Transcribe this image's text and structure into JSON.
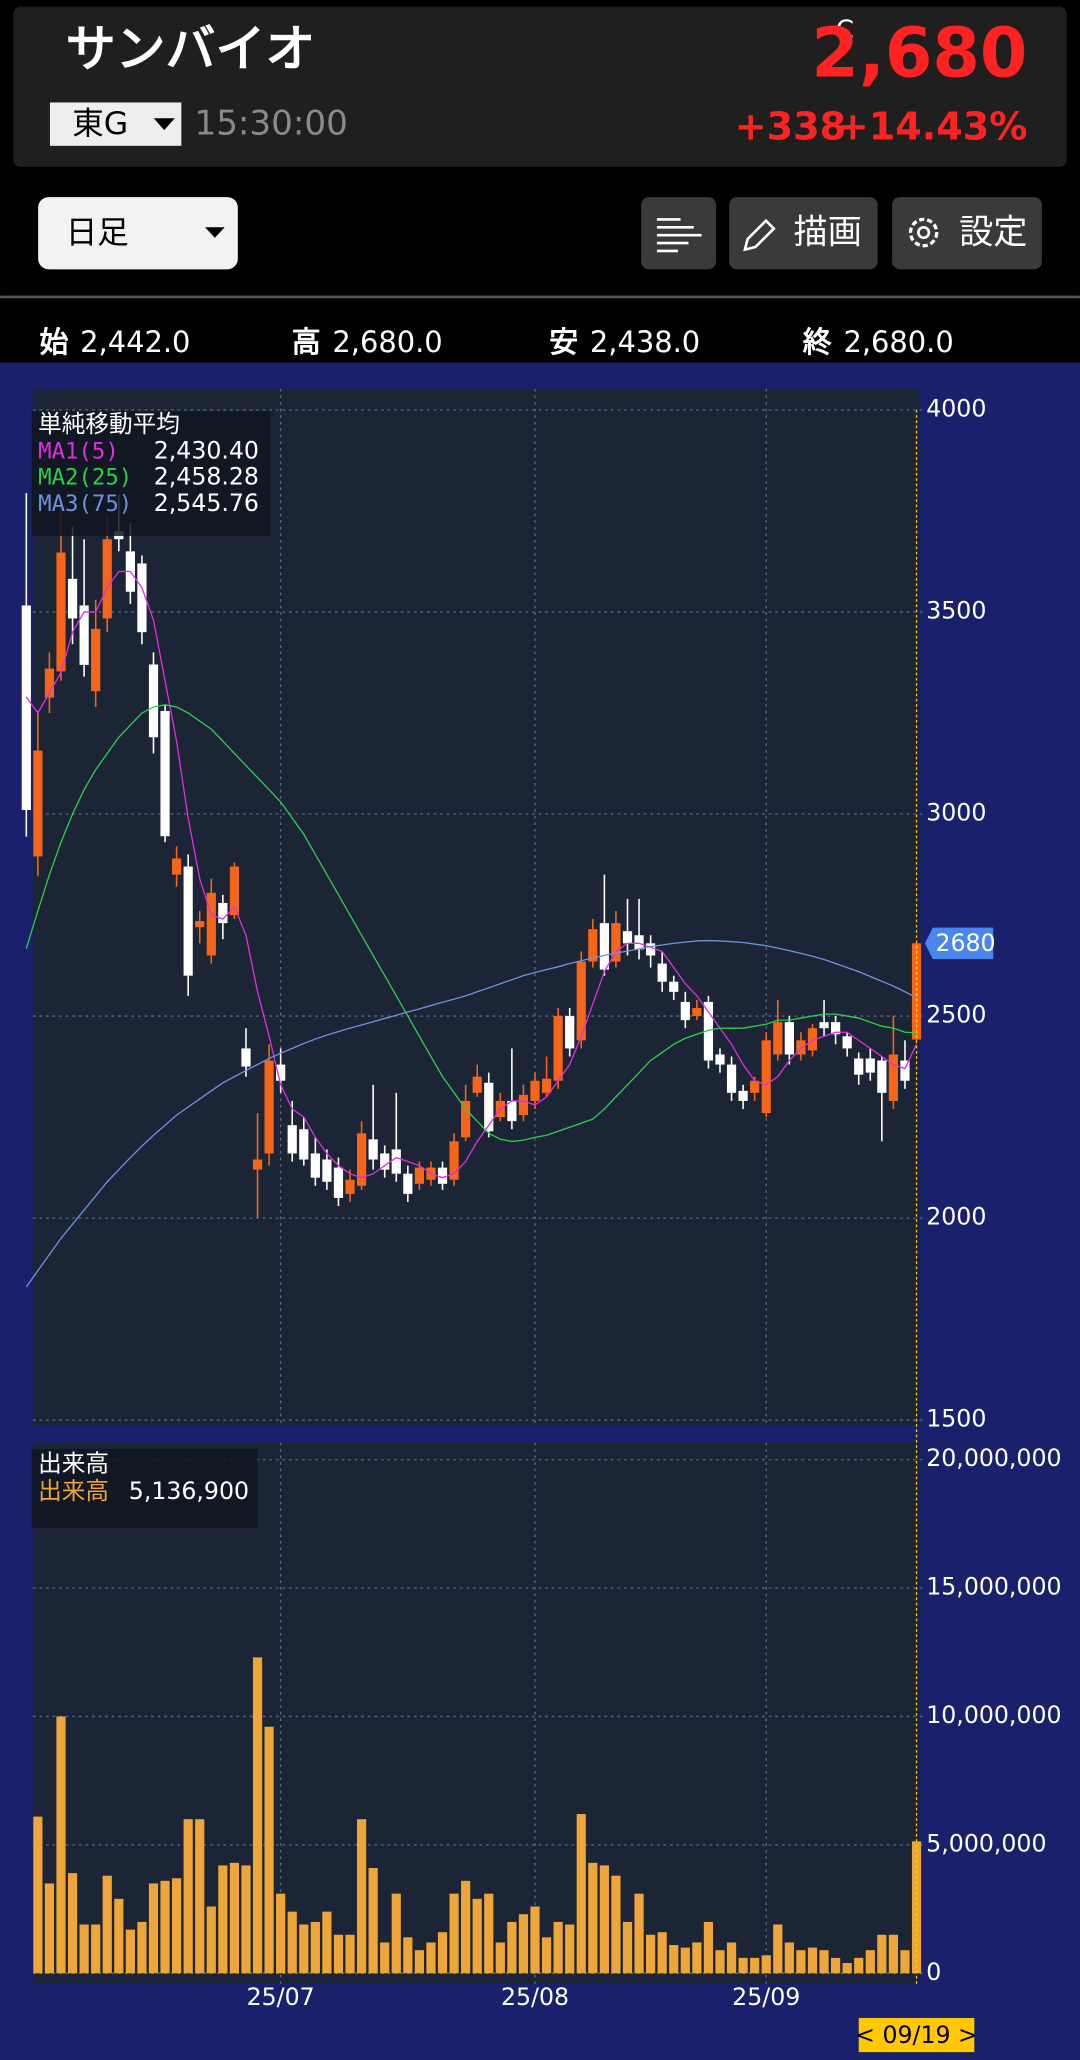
{
  "header": {
    "name": "サンバイオ",
    "market": "東G",
    "time": "15:30:00",
    "price_flag": "C",
    "price": "2,680",
    "change": "+338",
    "change_pct": "+14.43%"
  },
  "toolbar": {
    "period": "日足",
    "draw": "描画",
    "settings": "設定"
  },
  "ohlc": [
    {
      "label": "始",
      "value": "2,442.0"
    },
    {
      "label": "高",
      "value": "2,680.0"
    },
    {
      "label": "安",
      "value": "2,438.0"
    },
    {
      "label": "終",
      "value": "2,680.0"
    }
  ],
  "chart_data": [
    {
      "type": "candlestick",
      "overlay_title": "単純移動平均",
      "up_color": "#f5661a",
      "down_color": "#ffffff",
      "open": [
        3516,
        2895,
        3288,
        3353,
        3582,
        3516,
        3304,
        3484,
        3700,
        3650,
        3620,
        3370,
        3255,
        2850,
        2870,
        2720,
        2650,
        2780,
        2750,
        2420,
        2120,
        2160,
        2380,
        2230,
        2220,
        2160,
        2145,
        2125,
        2060,
        2080,
        2195,
        2160,
        2170,
        2110,
        2085,
        2095,
        2125,
        2095,
        2200,
        2310,
        2335,
        2250,
        2290,
        2255,
        2290,
        2310,
        2340,
        2500,
        2440,
        2635,
        2730,
        2635,
        2710,
        2700,
        2680,
        2630,
        2585,
        2535,
        2500,
        2535,
        2405,
        2380,
        2315,
        2310,
        2260,
        2405,
        2485,
        2405,
        2415,
        2485,
        2485,
        2450,
        2395,
        2395,
        2390,
        2290,
        2390,
        2442
      ],
      "high": [
        3794,
        3255,
        3400,
        3760,
        3712,
        3680,
        3530,
        3740,
        3790,
        3720,
        3640,
        3400,
        3270,
        2920,
        2900,
        2760,
        2840,
        2800,
        2880,
        2470,
        2260,
        2430,
        2420,
        2290,
        2250,
        2200,
        2170,
        2150,
        2120,
        2240,
        2330,
        2180,
        2310,
        2130,
        2140,
        2140,
        2140,
        2210,
        2330,
        2380,
        2360,
        2310,
        2420,
        2330,
        2360,
        2400,
        2520,
        2520,
        2660,
        2740,
        2850,
        2760,
        2790,
        2790,
        2700,
        2660,
        2600,
        2560,
        2540,
        2550,
        2420,
        2400,
        2330,
        2350,
        2460,
        2540,
        2500,
        2460,
        2480,
        2540,
        2500,
        2460,
        2410,
        2420,
        2400,
        2500,
        2440,
        2680
      ],
      "low": [
        2944,
        2846,
        3250,
        3330,
        3420,
        3340,
        3265,
        3450,
        3650,
        3520,
        3420,
        3150,
        2930,
        2820,
        2550,
        2680,
        2630,
        2690,
        2740,
        2350,
        2000,
        2130,
        2310,
        2140,
        2130,
        2080,
        2070,
        2030,
        2040,
        2070,
        2120,
        2100,
        2090,
        2040,
        2070,
        2080,
        2070,
        2080,
        2190,
        2300,
        2200,
        2240,
        2220,
        2240,
        2270,
        2300,
        2320,
        2400,
        2420,
        2620,
        2600,
        2620,
        2650,
        2640,
        2620,
        2560,
        2540,
        2470,
        2490,
        2370,
        2360,
        2290,
        2270,
        2290,
        2250,
        2390,
        2380,
        2390,
        2400,
        2450,
        2430,
        2400,
        2330,
        2340,
        2190,
        2270,
        2320,
        2438
      ],
      "close": [
        3010,
        3157,
        3360,
        3647,
        3484,
        3369,
        3458,
        3680,
        3680,
        3550,
        3450,
        3190,
        2945,
        2890,
        2600,
        2735,
        2805,
        2730,
        2870,
        2375,
        2145,
        2390,
        2340,
        2160,
        2145,
        2100,
        2090,
        2050,
        2095,
        2210,
        2145,
        2120,
        2110,
        2060,
        2125,
        2125,
        2085,
        2190,
        2290,
        2350,
        2215,
        2290,
        2240,
        2305,
        2340,
        2345,
        2500,
        2420,
        2635,
        2715,
        2615,
        2730,
        2680,
        2665,
        2650,
        2585,
        2560,
        2490,
        2520,
        2390,
        2380,
        2310,
        2290,
        2340,
        2440,
        2485,
        2405,
        2440,
        2470,
        2470,
        2455,
        2420,
        2355,
        2360,
        2310,
        2405,
        2340,
        2680
      ],
      "series": [
        {
          "name": "MA1(5)",
          "color": "#e02ee0",
          "last_label": "2,430.40",
          "values": [
            3290,
            3250,
            3300,
            3350,
            3450,
            3500,
            3500,
            3560,
            3600,
            3600,
            3560,
            3480,
            3330,
            3180,
            2990,
            2840,
            2750,
            2740,
            2770,
            2700,
            2560,
            2450,
            2330,
            2270,
            2250,
            2200,
            2160,
            2130,
            2110,
            2100,
            2110,
            2130,
            2150,
            2140,
            2130,
            2110,
            2100,
            2110,
            2140,
            2190,
            2230,
            2270,
            2290,
            2290,
            2280,
            2300,
            2340,
            2380,
            2450,
            2530,
            2610,
            2660,
            2680,
            2680,
            2670,
            2660,
            2620,
            2580,
            2550,
            2510,
            2470,
            2430,
            2380,
            2340,
            2330,
            2350,
            2390,
            2420,
            2440,
            2450,
            2460,
            2460,
            2440,
            2420,
            2400,
            2380,
            2370,
            2430.4
          ]
        },
        {
          "name": "MA2(25)",
          "color": "#2bd04a",
          "last_label": "2,458.28",
          "values": [
            2667,
            2760,
            2850,
            2930,
            3000,
            3060,
            3110,
            3150,
            3190,
            3220,
            3250,
            3265,
            3270,
            3265,
            3250,
            3230,
            3210,
            3180,
            3150,
            3120,
            3090,
            3060,
            3030,
            2990,
            2950,
            2900,
            2850,
            2800,
            2750,
            2700,
            2650,
            2600,
            2550,
            2500,
            2450,
            2400,
            2350,
            2310,
            2270,
            2240,
            2210,
            2195,
            2190,
            2193,
            2200,
            2205,
            2215,
            2225,
            2235,
            2245,
            2270,
            2300,
            2330,
            2360,
            2390,
            2410,
            2430,
            2445,
            2455,
            2465,
            2470,
            2470,
            2470,
            2475,
            2480,
            2490,
            2490,
            2495,
            2500,
            2505,
            2505,
            2500,
            2495,
            2485,
            2475,
            2470,
            2460,
            2458.28
          ]
        },
        {
          "name": "MA3(75)",
          "color": "#7090e0",
          "last_label": "2,545.76",
          "values": [
            1830,
            1870,
            1910,
            1950,
            1985,
            2020,
            2055,
            2090,
            2120,
            2150,
            2178,
            2205,
            2230,
            2255,
            2275,
            2295,
            2315,
            2335,
            2350,
            2365,
            2380,
            2395,
            2408,
            2420,
            2432,
            2443,
            2453,
            2462,
            2470,
            2478,
            2486,
            2494,
            2502,
            2510,
            2518,
            2526,
            2534,
            2542,
            2550,
            2560,
            2570,
            2580,
            2590,
            2600,
            2608,
            2615,
            2622,
            2630,
            2637,
            2644,
            2650,
            2656,
            2661,
            2666,
            2672,
            2676,
            2680,
            2683,
            2686,
            2687,
            2686,
            2684,
            2682,
            2678,
            2674,
            2668,
            2662,
            2655,
            2648,
            2640,
            2630,
            2620,
            2610,
            2598,
            2586,
            2574,
            2560,
            2545.76
          ]
        }
      ],
      "ylim": [
        1500,
        4000
      ],
      "yticks": [
        1500,
        2000,
        2500,
        3000,
        3500,
        4000
      ],
      "grid": true,
      "last_price": 2680
    },
    {
      "type": "bar",
      "title": "出来高",
      "categories": [
        null,
        null,
        null,
        null,
        null,
        null,
        null,
        null,
        null,
        null,
        null,
        null,
        null,
        null,
        null,
        null,
        null,
        null,
        null,
        null,
        null,
        null,
        "25/07",
        null,
        null,
        null,
        null,
        null,
        null,
        null,
        null,
        null,
        null,
        null,
        null,
        null,
        null,
        null,
        null,
        null,
        null,
        null,
        null,
        null,
        "25/08",
        null,
        null,
        null,
        null,
        null,
        null,
        null,
        null,
        null,
        null,
        null,
        null,
        null,
        null,
        null,
        null,
        null,
        null,
        null,
        "25/09",
        null,
        null,
        null,
        null,
        null,
        null,
        null,
        null,
        null,
        null,
        null,
        null,
        null
      ],
      "series": [
        {
          "name": "出来高",
          "color": "#eea53a",
          "last_label": "5,136,900",
          "values": [
            4000000,
            6100000,
            3500000,
            10000000,
            3900000,
            1900000,
            1900000,
            3800000,
            2900000,
            1700000,
            2000000,
            3500000,
            3600000,
            3700000,
            6000000,
            6000000,
            2600000,
            4200000,
            4300000,
            4200000,
            12300000,
            9600000,
            3100000,
            2400000,
            1900000,
            2000000,
            2400000,
            1500000,
            1500000,
            6000000,
            4100000,
            1200000,
            3100000,
            1400000,
            900000,
            1200000,
            1600000,
            3100000,
            3600000,
            2900000,
            3100000,
            1200000,
            2000000,
            2300000,
            2600000,
            1400000,
            2000000,
            1900000,
            6200000,
            4300000,
            4200000,
            3800000,
            2000000,
            3100000,
            1500000,
            1600000,
            1100000,
            1000000,
            1200000,
            2000000,
            900000,
            1200000,
            600000,
            600000,
            700000,
            1900000,
            1200000,
            900000,
            1000000,
            900000,
            600000,
            400000,
            600000,
            900000,
            1500000,
            1500000,
            900000,
            5136900
          ]
        }
      ],
      "ylim": [
        0,
        20000000
      ],
      "yticks": [
        0,
        {
          "value": 5000000,
          "label": "5,000,000"
        },
        {
          "value": 10000000,
          "label": "10,000,000"
        },
        {
          "value": 15000000,
          "label": "15,000,000"
        },
        {
          "value": 20000000,
          "label": "20,000,000"
        }
      ],
      "grid": true,
      "cursor_label": "< 09/19 >"
    }
  ]
}
